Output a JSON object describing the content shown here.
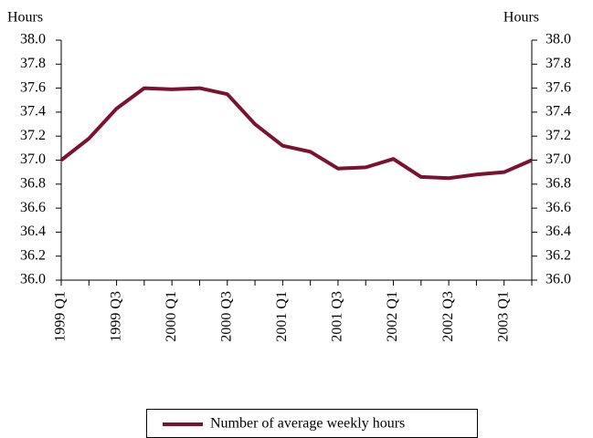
{
  "chart_data": {
    "type": "line",
    "y_label": "Hours",
    "y2_label": "Hours",
    "categories": [
      "1999 Q1",
      null,
      "1999 Q3",
      null,
      "2000 Q1",
      null,
      "2000 Q3",
      null,
      "2001 Q1",
      null,
      "2001 Q3",
      null,
      "2002 Q1",
      null,
      "2002 Q3",
      null,
      "2003 Q1",
      null
    ],
    "series": [
      {
        "name": "Number of average weekly hours",
        "color": "#7a1230",
        "values": [
          37.0,
          37.18,
          37.43,
          37.6,
          37.59,
          37.6,
          37.55,
          37.3,
          37.12,
          37.07,
          36.93,
          36.94,
          37.01,
          36.86,
          36.85,
          36.88,
          36.9,
          37.0
        ]
      }
    ],
    "ylim": [
      36,
      38
    ],
    "yticks": [
      {
        "value": 36,
        "label": "36.0"
      },
      {
        "value": 36.2,
        "label": "36.2"
      },
      {
        "value": 36.4,
        "label": "36.4"
      },
      {
        "value": 36.6,
        "label": "36.6"
      },
      {
        "value": 36.8,
        "label": "36.8"
      },
      {
        "value": 37,
        "label": "37.0"
      },
      {
        "value": 37.2,
        "label": "37.2"
      },
      {
        "value": 37.4,
        "label": "37.4"
      },
      {
        "value": 37.6,
        "label": "37.6"
      },
      {
        "value": 37.8,
        "label": "37.8"
      },
      {
        "value": 38,
        "label": "38.0"
      }
    ],
    "y2lim": [
      36,
      38
    ],
    "y2ticks": [
      {
        "value": 36,
        "label": "36.0"
      },
      {
        "value": 36.2,
        "label": "36.2"
      },
      {
        "value": 36.4,
        "label": "36.4"
      },
      {
        "value": 36.6,
        "label": "36.6"
      },
      {
        "value": 36.8,
        "label": "36.8"
      },
      {
        "value": 37,
        "label": "37.0"
      },
      {
        "value": 37.2,
        "label": "37.2"
      },
      {
        "value": 37.4,
        "label": "37.4"
      },
      {
        "value": 37.6,
        "label": "37.6"
      },
      {
        "value": 37.8,
        "label": "37.8"
      },
      {
        "value": 38,
        "label": "38.0"
      }
    ],
    "grid": false,
    "legend": "bottom"
  }
}
